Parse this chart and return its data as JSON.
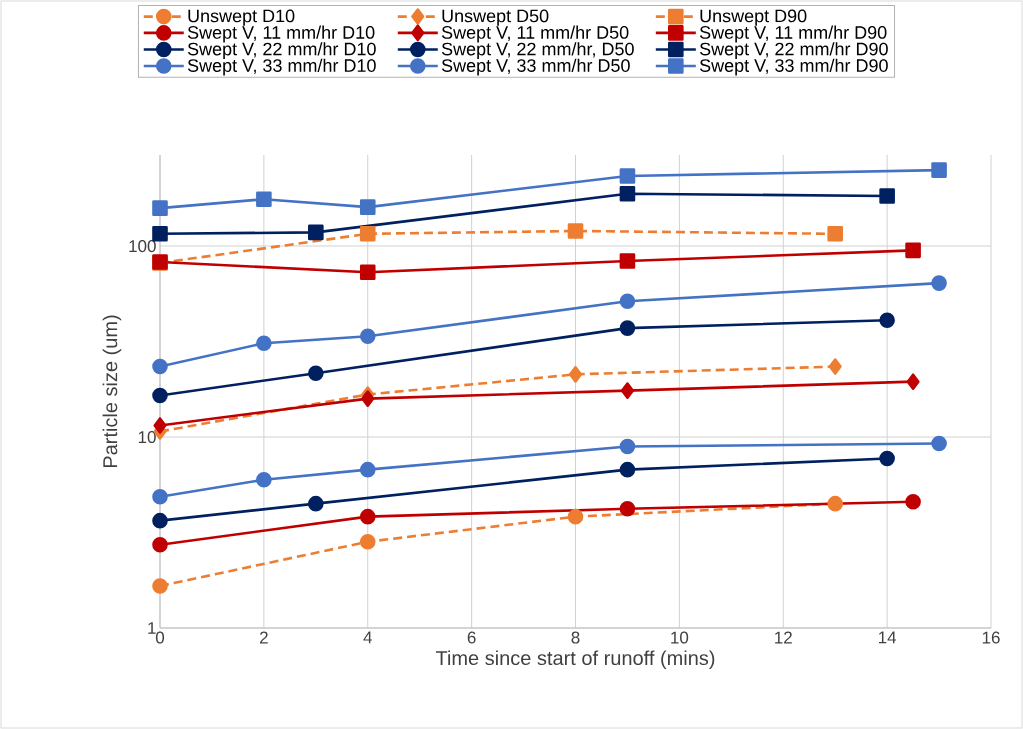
{
  "chart_data": {
    "type": "line",
    "xlabel": "Time since start of runoff (mins)",
    "ylabel": "Particle size (um)",
    "log": "y",
    "grid": true,
    "legend": "top",
    "xlim": [
      0,
      16
    ],
    "xticks": [
      0,
      2,
      4,
      6,
      8,
      10,
      12,
      14,
      16
    ],
    "ylim": [
      1,
      300
    ],
    "yticks": [
      1,
      10,
      100
    ],
    "series": [
      {
        "name": "Unswept D10",
        "color": "#ed7d31",
        "marker": "circle",
        "line_style": "dashed",
        "x": [
          0,
          4,
          8,
          13
        ],
        "values": [
          1.66,
          2.83,
          3.83,
          4.48
        ]
      },
      {
        "name": "Unswept D50",
        "color": "#ed7d31",
        "marker": "diamond",
        "line_style": "dashed",
        "x": [
          0,
          4,
          8,
          13
        ],
        "values": [
          10.7,
          16.7,
          21.3,
          23.4
        ]
      },
      {
        "name": "Unswept D90",
        "color": "#ed7d31",
        "marker": "square",
        "line_style": "dashed",
        "x": [
          0,
          4,
          8,
          13
        ],
        "values": [
          81.6,
          116,
          120,
          116
        ]
      },
      {
        "name": "Swept V, 11 mm/hr D10",
        "color": "#c00000",
        "marker": "circle",
        "line_style": "solid",
        "x": [
          0,
          4,
          9,
          14.5
        ],
        "values": [
          2.73,
          3.83,
          4.21,
          4.58
        ]
      },
      {
        "name": "Swept V, 11 mm/hr D50",
        "color": "#c00000",
        "marker": "diamond",
        "line_style": "solid",
        "x": [
          0,
          4,
          9,
          14.5
        ],
        "values": [
          11.5,
          15.9,
          17.5,
          19.5
        ]
      },
      {
        "name": "Swept V, 11 mm/hr D90",
        "color": "#c00000",
        "marker": "square",
        "line_style": "solid",
        "x": [
          0,
          4,
          9,
          14.5
        ],
        "values": [
          82.5,
          73,
          83.5,
          95
        ]
      },
      {
        "name": "Swept V, 22 mm/hr D10",
        "color": "#002060",
        "marker": "circle",
        "line_style": "solid",
        "x": [
          0,
          3,
          9,
          14
        ],
        "values": [
          3.65,
          4.48,
          6.75,
          7.72
        ]
      },
      {
        "name": "Swept V, 22 mm/hr, D50",
        "color": "#002060",
        "marker": "circle",
        "line_style": "solid",
        "x": [
          0,
          3,
          9,
          14
        ],
        "values": [
          16.5,
          21.6,
          37.2,
          40.9
        ]
      },
      {
        "name": "Swept V, 22 mm/hr D90",
        "color": "#002060",
        "marker": "square",
        "line_style": "solid",
        "x": [
          0,
          3,
          9,
          14
        ],
        "values": [
          116,
          118,
          188,
          183
        ]
      },
      {
        "name": "Swept V, 33 mm/hr D10",
        "color": "#4472c4",
        "marker": "circle",
        "line_style": "solid",
        "x": [
          0,
          2,
          4,
          9,
          15
        ],
        "values": [
          4.87,
          5.98,
          6.75,
          8.92,
          9.25
        ]
      },
      {
        "name": "Swept V, 33 mm/hr D50",
        "color": "#4472c4",
        "marker": "circle",
        "line_style": "solid",
        "x": [
          0,
          2,
          4,
          9,
          15
        ],
        "values": [
          23.4,
          31,
          33.7,
          51.4,
          64
        ]
      },
      {
        "name": "Swept V, 33 mm/hr D90",
        "color": "#4472c4",
        "marker": "square",
        "line_style": "solid",
        "x": [
          0,
          2,
          4,
          9,
          15
        ],
        "values": [
          158,
          176,
          160,
          233,
          250
        ]
      }
    ]
  }
}
